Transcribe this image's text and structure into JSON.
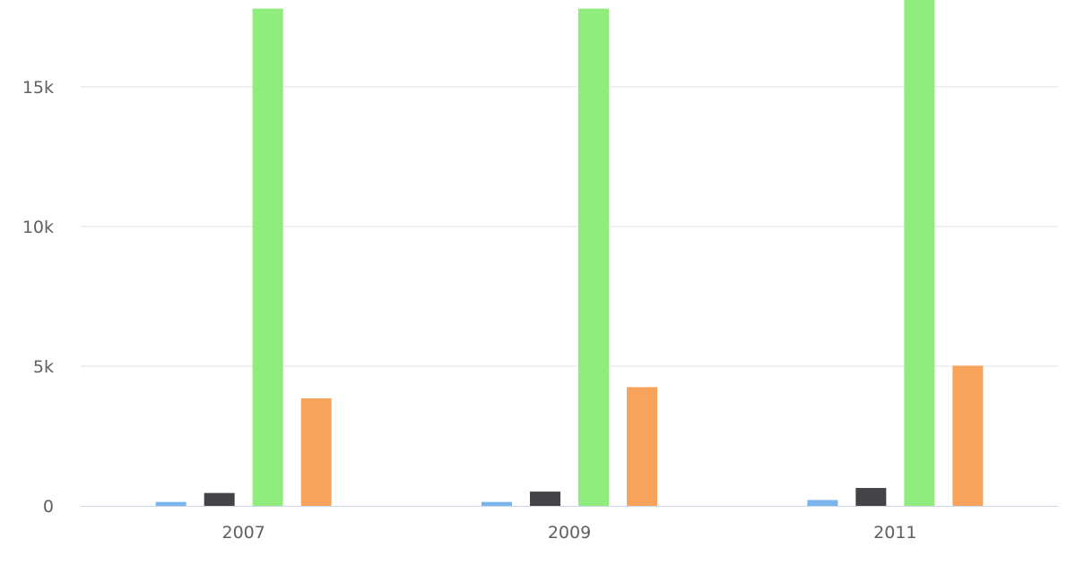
{
  "chart_data": {
    "type": "bar",
    "categories": [
      "2007",
      "2009",
      "2011"
    ],
    "series": [
      {
        "color": "#7cb5ec",
        "values": [
          140,
          140,
          210
        ]
      },
      {
        "color": "#434348",
        "values": [
          460,
          510,
          640
        ]
      },
      {
        "color": "#90ed7d",
        "values": [
          17800,
          17800,
          18600
        ]
      },
      {
        "color": "#f7a35c",
        "values": [
          3850,
          4250,
          5020
        ]
      }
    ],
    "y_ticks": [
      {
        "value": 0,
        "label": "0"
      },
      {
        "value": 5000,
        "label": "5k"
      },
      {
        "value": 10000,
        "label": "10k"
      },
      {
        "value": 15000,
        "label": "15k"
      }
    ],
    "ylim": [
      0,
      18000
    ],
    "grid": true,
    "title": "",
    "xlabel": "",
    "ylabel": ""
  }
}
